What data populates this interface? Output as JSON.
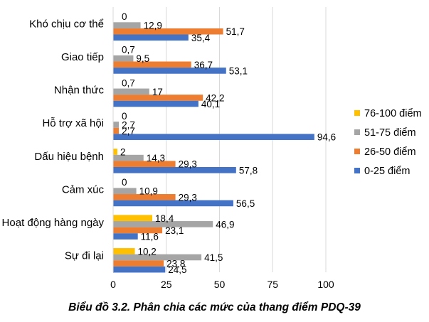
{
  "caption": "Biểu đồ 3.2. Phân chia các mức của thang điểm PDQ-39",
  "chart_data": {
    "type": "bar",
    "orientation": "horizontal",
    "categories": [
      "Khó chịu cơ thể",
      "Giao tiếp",
      "Nhận thức",
      "Hỗ trợ xã hội",
      "Dấu hiệu bệnh",
      "Cảm xúc",
      "Hoạt động hàng ngày",
      "Sự đi lại"
    ],
    "series": [
      {
        "name": "76-100 điểm",
        "color": "#FFC000",
        "values": [
          null,
          null,
          null,
          null,
          2,
          null,
          18.4,
          10.2
        ],
        "labels": [
          "",
          "",
          "",
          "",
          "2",
          "",
          "18,4",
          "10,2"
        ]
      },
      {
        "name": "51-75 điểm",
        "color": "#A5A5A5",
        "values": [
          12.9,
          9.5,
          17,
          2.7,
          14.3,
          10.9,
          46.9,
          41.5
        ],
        "labels": [
          "12,9",
          "9,5",
          "17",
          "2,7",
          "14,3",
          "10,9",
          "46,9",
          "41,5"
        ]
      },
      {
        "name": "26-50 điểm",
        "color": "#ED7D31",
        "values": [
          51.7,
          36.7,
          42.2,
          2.7,
          29.3,
          29.3,
          23.1,
          23.8
        ],
        "labels": [
          "51,7",
          "36,7",
          "42,2",
          "2,7",
          "29,3",
          "29,3",
          "23,1",
          "23,8"
        ]
      },
      {
        "name": "0-25 điểm",
        "color": "#4472C4",
        "values": [
          35.4,
          53.1,
          40.1,
          94.6,
          57.8,
          56.5,
          11.6,
          24.5
        ],
        "labels": [
          "35,4",
          "53,1",
          "40,1",
          "94,6",
          "57,8",
          "56,5",
          "11,6",
          "24,5"
        ]
      }
    ],
    "extra_labels": [
      {
        "category_index": 0,
        "text": "0"
      },
      {
        "category_index": 1,
        "text": "0,7"
      },
      {
        "category_index": 2,
        "text": "0,7"
      },
      {
        "category_index": 3,
        "text": "0"
      },
      {
        "category_index": 5,
        "text": "0"
      }
    ],
    "xlim": [
      0,
      100
    ],
    "xticks": [
      0,
      25,
      50,
      75,
      100
    ],
    "xtick_labels": [
      "0",
      "25",
      "50",
      "75",
      "100"
    ],
    "grid": "vertical",
    "grid_color": "#D9D9D9",
    "legend_position": "right",
    "legend_order": [
      "76-100 điểm",
      "51-75 điểm",
      "26-50 điểm",
      "0-25 điểm"
    ]
  }
}
